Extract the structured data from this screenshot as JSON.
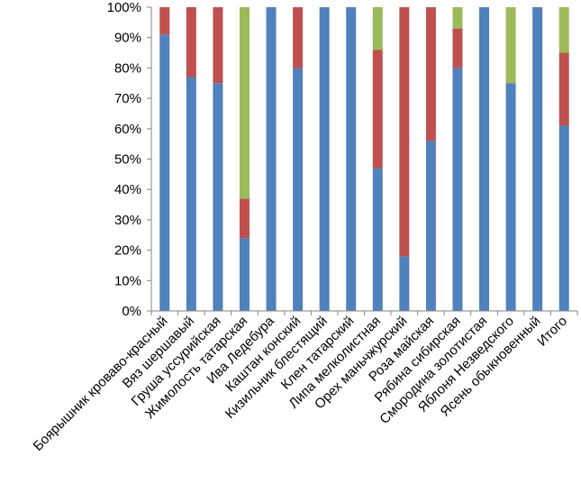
{
  "chart_data": {
    "type": "bar",
    "stacked": "percent",
    "title": "",
    "xlabel": "",
    "ylabel": "",
    "ylim": [
      0,
      100
    ],
    "yticks": [
      "0%",
      "10%",
      "20%",
      "30%",
      "40%",
      "50%",
      "60%",
      "70%",
      "80%",
      "90%",
      "100%"
    ],
    "grid": false,
    "legend": "none",
    "categories": [
      "Боярышник кроваво-красный",
      "Вяз шершавый",
      "Груша уссурийская",
      "Жимолость татарская",
      "Ива Ледебура",
      "Каштан конский",
      "Кизильник блестящий",
      "Клен татарский",
      "Липа мелколистная",
      "Орех маньчжурский",
      "Роза майская",
      "Рябина сибирская",
      "Смородина золотистая",
      "Яблоня Незведского",
      "Ясень обыкновенный",
      "Итого"
    ],
    "series": [
      {
        "color": "#4f81bd",
        "values": [
          91,
          77,
          75,
          24,
          100,
          80,
          100,
          100,
          47,
          18,
          56,
          80,
          100,
          75,
          100,
          61
        ]
      },
      {
        "color": "#c0504d",
        "values": [
          9,
          23,
          25,
          13,
          0,
          20,
          0,
          0,
          39,
          82,
          44,
          13,
          0,
          0,
          0,
          24
        ]
      },
      {
        "color": "#9bbb59",
        "values": [
          0,
          0,
          0,
          63,
          0,
          0,
          0,
          0,
          14,
          0,
          0,
          7,
          0,
          25,
          0,
          15
        ]
      }
    ]
  }
}
